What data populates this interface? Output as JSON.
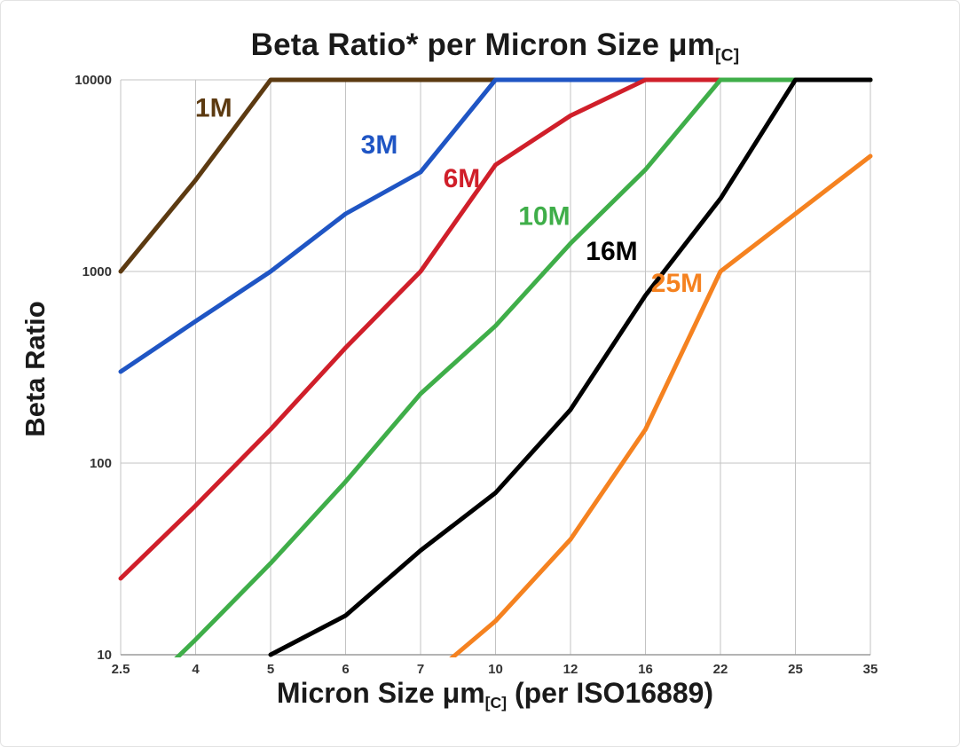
{
  "header": {
    "title_main": "Beta Ratio* per Micron Size μm",
    "title_sub": "[C]"
  },
  "axes": {
    "y_label": "Beta Ratio",
    "x_label_pre": "Micron Size μm",
    "x_label_sub": "[C]",
    "x_label_post": " (per ISO16889)"
  },
  "chart_data": {
    "type": "line",
    "title": "Beta Ratio* per Micron Size μm[C]",
    "xlabel": "Micron Size μm[C] (per ISO16889)",
    "ylabel": "Beta Ratio",
    "x_categories": [
      "2.5",
      "4",
      "5",
      "6",
      "7",
      "10",
      "12",
      "16",
      "22",
      "25",
      "35"
    ],
    "x_axis_type": "categorical-equal-spacing",
    "y_scale": "log",
    "ylim": [
      10,
      10000
    ],
    "y_ticks": [
      10,
      100,
      1000,
      10000
    ],
    "grid": true,
    "gridline_color": "#c3c3c3",
    "legend_position": "inline-labels",
    "series": [
      {
        "name": "1M",
        "color": "#5c3a11",
        "values": [
          1000,
          3000,
          10000,
          10000,
          10000,
          10000,
          10000,
          10000,
          10000,
          10000,
          10000
        ],
        "label_pos": [
          1.24,
          7000
        ]
      },
      {
        "name": "3M",
        "color": "#1f55c4",
        "values": [
          300,
          550,
          1000,
          2000,
          3300,
          10000,
          10000,
          10000,
          10000,
          10000,
          10000
        ],
        "label_pos": [
          3.45,
          4500
        ]
      },
      {
        "name": "6M",
        "color": "#d01f2a",
        "values": [
          25,
          60,
          150,
          400,
          1000,
          3600,
          6500,
          10000,
          10000,
          10000,
          10000
        ],
        "label_pos": [
          4.55,
          3000
        ]
      },
      {
        "name": "10M",
        "color": "#3fae49",
        "values": [
          5,
          12,
          30,
          80,
          230,
          520,
          1400,
          3400,
          10000,
          10000,
          10000
        ],
        "label_pos": [
          5.65,
          1900
        ]
      },
      {
        "name": "16M",
        "color": "#000000",
        "values": [
          null,
          null,
          10,
          16,
          35,
          70,
          190,
          750,
          2400,
          10000,
          10000
        ],
        "label_pos": [
          6.55,
          1250
        ]
      },
      {
        "name": "25M",
        "color": "#f58220",
        "values": [
          null,
          null,
          null,
          null,
          7,
          15,
          40,
          150,
          1000,
          2000,
          4000
        ],
        "label_pos": [
          7.42,
          850
        ]
      }
    ]
  }
}
